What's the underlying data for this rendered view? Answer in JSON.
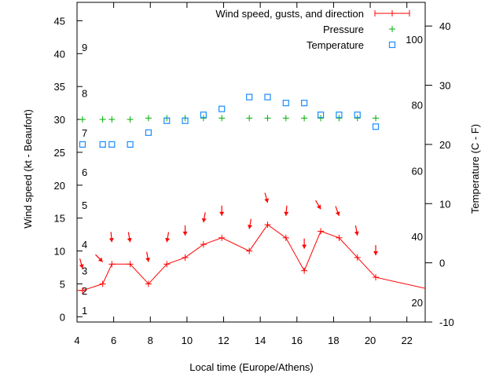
{
  "chart_data": {
    "type": "line",
    "xlabel": "Local time (Europe/Athens)",
    "ylabel": "Wind speed (kt - Beaufort)",
    "y2label": "Temperature (C - F)",
    "xlim": [
      4,
      23
    ],
    "ylim": [
      -0.8,
      47.8
    ],
    "y2lim": [
      -10,
      44
    ],
    "grid": false,
    "legend_position": "top-right",
    "x_ticks": [
      4,
      6,
      8,
      10,
      12,
      14,
      16,
      18,
      20,
      22
    ],
    "y_ticks": [
      0,
      5,
      10,
      15,
      20,
      25,
      30,
      35,
      40,
      45
    ],
    "y2_ticks": [
      -10,
      0,
      10,
      20,
      30,
      40
    ],
    "beaufort_labels": [
      {
        "label": "1",
        "kt": 1
      },
      {
        "label": "2",
        "kt": 4
      },
      {
        "label": "3",
        "kt": 7
      },
      {
        "label": "4",
        "kt": 11
      },
      {
        "label": "5",
        "kt": 17
      },
      {
        "label": "6",
        "kt": 22
      },
      {
        "label": "7",
        "kt": 28
      },
      {
        "label": "8",
        "kt": 34
      },
      {
        "label": "9",
        "kt": 41
      }
    ],
    "fahrenheit_labels": [
      {
        "label": "20",
        "f": 20
      },
      {
        "label": "40",
        "f": 40
      },
      {
        "label": "60",
        "f": 60
      },
      {
        "label": "80",
        "f": 80
      },
      {
        "label": "100",
        "f": 100
      }
    ],
    "series": [
      {
        "name": "Wind speed, gusts, and direction",
        "color": "#ff0000",
        "x": [
          4.3,
          5.4,
          5.9,
          6.9,
          7.9,
          8.9,
          9.9,
          10.9,
          11.9,
          13.4,
          14.4,
          15.4,
          16.4,
          17.3,
          18.3,
          19.3,
          20.3
        ],
        "values": [
          4,
          5,
          8,
          8,
          5,
          8,
          9,
          11,
          12,
          10,
          14,
          12,
          7,
          13,
          12,
          9,
          6
        ],
        "direction_deg": [
          345,
          315,
          355,
          350,
          350,
          10,
          0,
          10,
          0,
          10,
          345,
          5,
          0,
          330,
          340,
          350,
          0
        ],
        "line_extends_to": {
          "x": 24,
          "value": 3.7
        }
      },
      {
        "name": "Pressure",
        "color": "#00b000",
        "x": [
          4.3,
          5.4,
          5.9,
          6.9,
          7.9,
          8.9,
          9.9,
          10.9,
          11.9,
          13.4,
          14.4,
          15.4,
          16.4,
          17.3,
          18.3,
          19.3,
          20.3
        ],
        "values": [
          30.0,
          30.0,
          30.0,
          30.0,
          30.2,
          30.2,
          30.2,
          30.2,
          30.2,
          30.2,
          30.2,
          30.2,
          30.2,
          30.2,
          30.2,
          30.2,
          30.2
        ]
      },
      {
        "name": "Temperature",
        "color": "#1a8cff",
        "axis": "y2",
        "x": [
          4.3,
          5.4,
          5.9,
          6.9,
          7.9,
          8.9,
          9.9,
          10.9,
          11.9,
          13.4,
          14.4,
          15.4,
          16.4,
          17.3,
          18.3,
          19.3,
          20.3
        ],
        "values": [
          20,
          20,
          20,
          20,
          22,
          24,
          24,
          25,
          26,
          28,
          28,
          27,
          27,
          25,
          25,
          25,
          23
        ]
      }
    ]
  }
}
